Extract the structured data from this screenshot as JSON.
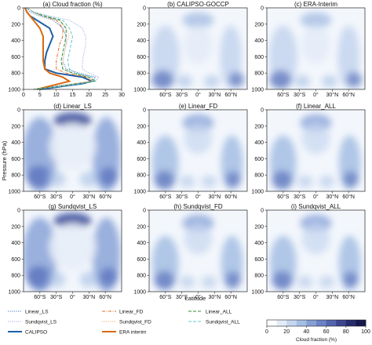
{
  "chart_data": [
    {
      "id": "a",
      "type": "line",
      "title": "(a) Cloud fraction (%)",
      "xlim": [
        0,
        30
      ],
      "ylim": [
        1000,
        0
      ],
      "xticks": [
        0,
        5,
        10,
        15,
        20,
        25,
        30
      ],
      "yticks": [
        0,
        200,
        400,
        600,
        800,
        1000
      ],
      "ylabel": "",
      "series": [
        {
          "name": "Linear_LS",
          "color": "#4a72c4",
          "style": "dotted",
          "points": [
            [
              1,
              0
            ],
            [
              2,
              50
            ],
            [
              5,
              100
            ],
            [
              9,
              150
            ],
            [
              12,
              250
            ],
            [
              13,
              350
            ],
            [
              13,
              450
            ],
            [
              12.5,
              550
            ],
            [
              12,
              650
            ],
            [
              13,
              750
            ],
            [
              17,
              800
            ],
            [
              22,
              850
            ],
            [
              21,
              900
            ],
            [
              12,
              950
            ],
            [
              3,
              1000
            ]
          ]
        },
        {
          "name": "Sundqvist_LS",
          "color": "#9fb2e0",
          "style": "dotted",
          "points": [
            [
              1,
              0
            ],
            [
              3,
              50
            ],
            [
              8,
              100
            ],
            [
              14,
              150
            ],
            [
              18,
              250
            ],
            [
              19,
              350
            ],
            [
              19,
              450
            ],
            [
              18.5,
              550
            ],
            [
              18,
              650
            ],
            [
              18,
              750
            ],
            [
              20,
              800
            ],
            [
              23,
              850
            ],
            [
              22,
              900
            ],
            [
              14,
              950
            ],
            [
              3,
              1000
            ]
          ]
        },
        {
          "name": "CALIPSO",
          "color": "#1f5fa8",
          "style": "solid",
          "points": [
            [
              0.5,
              0
            ],
            [
              1,
              50
            ],
            [
              2,
              100
            ],
            [
              4,
              150
            ],
            [
              8,
              250
            ],
            [
              9,
              350
            ],
            [
              8,
              450
            ],
            [
              7,
              550
            ],
            [
              6.5,
              650
            ],
            [
              6.5,
              750
            ],
            [
              10,
              800
            ],
            [
              18,
              850
            ],
            [
              21,
              900
            ],
            [
              18,
              930
            ],
            [
              5,
              1000
            ]
          ]
        },
        {
          "name": "Linear_FD",
          "color": "#e06a2c",
          "style": "dashdot",
          "points": [
            [
              1,
              0
            ],
            [
              3,
              50
            ],
            [
              6,
              100
            ],
            [
              10,
              150
            ],
            [
              12,
              250
            ],
            [
              12,
              350
            ],
            [
              11,
              450
            ],
            [
              10.5,
              550
            ],
            [
              10,
              650
            ],
            [
              10,
              750
            ],
            [
              13,
              800
            ],
            [
              19,
              850
            ],
            [
              21,
              900
            ],
            [
              13,
              950
            ],
            [
              3,
              1000
            ]
          ]
        },
        {
          "name": "Sundqvist_FD",
          "color": "#f0b07a",
          "style": "dotted",
          "points": [
            [
              1,
              0
            ],
            [
              3,
              50
            ],
            [
              7,
              100
            ],
            [
              11,
              150
            ],
            [
              13,
              250
            ],
            [
              14,
              350
            ],
            [
              13,
              450
            ],
            [
              12.5,
              550
            ],
            [
              12,
              650
            ],
            [
              12,
              750
            ],
            [
              15,
              800
            ],
            [
              20,
              850
            ],
            [
              21,
              900
            ],
            [
              14,
              950
            ],
            [
              3,
              1000
            ]
          ]
        },
        {
          "name": "ERA interim",
          "color": "#d86a10",
          "style": "solid",
          "points": [
            [
              0.5,
              0
            ],
            [
              1,
              50
            ],
            [
              2,
              100
            ],
            [
              3,
              150
            ],
            [
              5,
              250
            ],
            [
              6,
              350
            ],
            [
              6,
              450
            ],
            [
              6,
              550
            ],
            [
              6,
              650
            ],
            [
              6.5,
              750
            ],
            [
              8,
              800
            ],
            [
              12,
              850
            ],
            [
              14,
              900
            ],
            [
              9,
              950
            ],
            [
              4,
              1000
            ]
          ]
        },
        {
          "name": "Linear_ALL",
          "color": "#2c8c3a",
          "style": "dashed",
          "points": [
            [
              1,
              0
            ],
            [
              3,
              50
            ],
            [
              6,
              100
            ],
            [
              11,
              150
            ],
            [
              13,
              250
            ],
            [
              13,
              350
            ],
            [
              12.5,
              450
            ],
            [
              12,
              550
            ],
            [
              11.5,
              650
            ],
            [
              12,
              750
            ],
            [
              15,
              800
            ],
            [
              20,
              850
            ],
            [
              22,
              900
            ],
            [
              13,
              950
            ],
            [
              3,
              1000
            ]
          ]
        },
        {
          "name": "Sundqvist_ALL",
          "color": "#67c6c9",
          "style": "dashed",
          "points": [
            [
              1,
              0
            ],
            [
              3,
              50
            ],
            [
              7,
              100
            ],
            [
              12,
              150
            ],
            [
              14,
              250
            ],
            [
              15,
              350
            ],
            [
              14.5,
              450
            ],
            [
              14,
              550
            ],
            [
              13.5,
              650
            ],
            [
              14,
              750
            ],
            [
              16,
              800
            ],
            [
              21,
              850
            ],
            [
              22,
              900
            ],
            [
              14,
              950
            ],
            [
              3,
              1000
            ]
          ]
        }
      ]
    },
    {
      "id": "b",
      "type": "heatmap",
      "title": "(b) CALIPSO-GOCCP",
      "xticks": [
        "60°S",
        "30°S",
        "0°",
        "30°N",
        "60°N"
      ],
      "pattern": "obs"
    },
    {
      "id": "c",
      "type": "heatmap",
      "title": "(c) ERA-Interim",
      "xticks": [
        "60°S",
        "30°S",
        "0°",
        "30°N",
        "60°N"
      ],
      "pattern": "obs"
    },
    {
      "id": "d",
      "type": "heatmap",
      "title": "(d) Linear_LS",
      "xticks": [
        "60°S",
        "30°S",
        "0°",
        "30°N",
        "60°N"
      ],
      "pattern": "ls"
    },
    {
      "id": "e",
      "type": "heatmap",
      "title": "(e) Linear_FD",
      "xticks": [
        "60°S",
        "30°S",
        "0°",
        "30°N",
        "60°N"
      ],
      "pattern": "fd"
    },
    {
      "id": "f",
      "type": "heatmap",
      "title": "(f) Linear_ALL",
      "xticks": [
        "60°S",
        "30°S",
        "0°",
        "30°N",
        "60°N"
      ],
      "pattern": "fd"
    },
    {
      "id": "g",
      "type": "heatmap",
      "title": "(g) Sundqvist_LS",
      "xticks": [
        "60°S",
        "30°S",
        "0°",
        "30°N",
        "60°N"
      ],
      "pattern": "ls"
    },
    {
      "id": "h",
      "type": "heatmap",
      "title": "(h) Sundqvist_FD",
      "xticks": [
        "60°S",
        "30°S",
        "0°",
        "30°N",
        "60°N"
      ],
      "pattern": "fd"
    },
    {
      "id": "i",
      "type": "heatmap",
      "title": "(i) Sundqvist_ALL",
      "xticks": [
        "60°S",
        "30°S",
        "0°",
        "30°N",
        "60°N"
      ],
      "pattern": "fd"
    }
  ],
  "axes": {
    "ylabel": "Pressure (hPa)",
    "xlabel": "Latitude",
    "pressure_ticks": [
      "0",
      "200",
      "400",
      "600",
      "800",
      "1000"
    ]
  },
  "legend": {
    "entries": [
      "Linear_LS",
      "Linear_FD",
      "Linear_ALL",
      "Sundqvist_LS",
      "Sundqvist_FD",
      "Sundqvist_ALL",
      "CALIPSO",
      "ERA interim"
    ]
  },
  "colorbar": {
    "label": "Cloud fraction (%)",
    "ticks": [
      "0",
      "20",
      "40",
      "60",
      "80",
      "100"
    ],
    "colors": [
      "#ffffff",
      "#e3ecf8",
      "#c6d6ef",
      "#a5bee4",
      "#869fd5",
      "#6b82c4",
      "#5464ae",
      "#3c468f",
      "#272c6e",
      "#17184b"
    ]
  }
}
